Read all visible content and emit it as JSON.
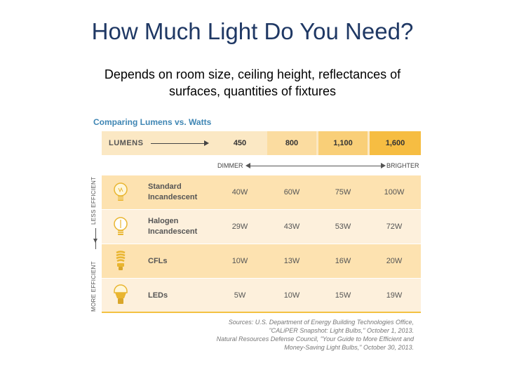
{
  "slide": {
    "title": "How Much Light Do You Need?",
    "subtitle_line1": "Depends on room size,  ceiling height, reflectances of",
    "subtitle_line2": "surfaces, quantities of fixtures"
  },
  "figure": {
    "heading": "Comparing Lumens vs. Watts",
    "lumens_label": "LUMENS",
    "lumens": [
      "450",
      "800",
      "1,100",
      "1,600"
    ],
    "scale_left": "DIMMER",
    "scale_right": "BRIGHTER",
    "side_less": "LESS EFFICIENT",
    "side_more": "MORE EFFICIENT",
    "rows": [
      {
        "label_line1": "Standard",
        "label_line2": "Incandescent",
        "watts": [
          "40W",
          "60W",
          "75W",
          "100W"
        ],
        "icon": "incandescent-bulb-icon"
      },
      {
        "label_line1": "Halogen",
        "label_line2": "Incandescent",
        "watts": [
          "29W",
          "43W",
          "53W",
          "72W"
        ],
        "icon": "halogen-bulb-icon"
      },
      {
        "label_line1": "CFLs",
        "label_line2": "",
        "watts": [
          "10W",
          "13W",
          "16W",
          "20W"
        ],
        "icon": "cfl-bulb-icon"
      },
      {
        "label_line1": "LEDs",
        "label_line2": "",
        "watts": [
          "5W",
          "10W",
          "15W",
          "19W"
        ],
        "icon": "led-bulb-icon"
      }
    ],
    "sources": [
      "Sources: U.S. Department of Energy Building Technologies Office,",
      "\"CALiPER Snapshot: Light Bulbs,\" October 1, 2013.",
      "Natural Resources Defense Council, \"Your Guide to More Efficient and",
      "Money-Saving Light Bulbs,\" October 30, 2013."
    ],
    "colors": {
      "lumen_cells": [
        "#fbe8c4",
        "#fbdca0",
        "#f9cf78",
        "#f6bd42"
      ],
      "row_bg": [
        "#fde2b0",
        "#fdf0dc"
      ],
      "heading": "#3f86b4",
      "bulb": "#f3c242"
    }
  }
}
